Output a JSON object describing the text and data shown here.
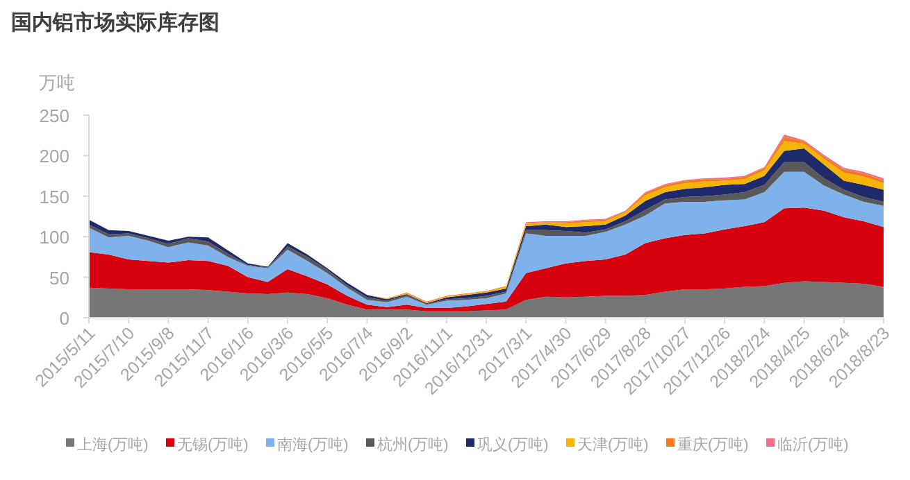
{
  "chart_data": {
    "type": "area",
    "stacked": true,
    "title": "国内铝市场实际库存图",
    "ylabel": "万吨",
    "legend": "bottom",
    "x": [
      "2015-05-11",
      "2015-06-10",
      "2015-07-10",
      "2015-08-09",
      "2015-09-08",
      "2015-10-08",
      "2015-11-07",
      "2015-12-07",
      "2016-01-06",
      "2016-02-05",
      "2016-03-06",
      "2016-04-05",
      "2016-05-05",
      "2016-06-04",
      "2016-07-04",
      "2016-08-03",
      "2016-09-02",
      "2016-10-02",
      "2016-11-01",
      "2016-12-01",
      "2016-12-31",
      "2017-01-30",
      "2017-03-01",
      "2017-03-31",
      "2017-04-30",
      "2017-05-30",
      "2017-06-29",
      "2017-07-29",
      "2017-08-28",
      "2017-09-27",
      "2017-10-27",
      "2017-11-26",
      "2017-12-26",
      "2018-01-25",
      "2018-02-24",
      "2018-03-26",
      "2018-04-25",
      "2018-05-25",
      "2018-06-24",
      "2018-07-24",
      "2018-08-23"
    ],
    "xlim": [
      "2015-05-11",
      "2018-08-23"
    ],
    "xticks": [
      {
        "value": "2015-05-11",
        "label": "2015/5/11"
      },
      {
        "value": "2015-07-10",
        "label": "2015/7/10"
      },
      {
        "value": "2015-09-08",
        "label": "2015/9/8"
      },
      {
        "value": "2015-11-07",
        "label": "2015/11/7"
      },
      {
        "value": "2016-01-06",
        "label": "2016/1/6"
      },
      {
        "value": "2016-03-06",
        "label": "2016/3/6"
      },
      {
        "value": "2016-05-05",
        "label": "2016/5/5"
      },
      {
        "value": "2016-07-04",
        "label": "2016/7/4"
      },
      {
        "value": "2016-09-02",
        "label": "2016/9/2"
      },
      {
        "value": "2016-11-01",
        "label": "2016/11/1"
      },
      {
        "value": "2016-12-31",
        "label": "2016/12/31"
      },
      {
        "value": "2017-03-01",
        "label": "2017/3/1"
      },
      {
        "value": "2017-04-30",
        "label": "2017/4/30"
      },
      {
        "value": "2017-06-29",
        "label": "2017/6/29"
      },
      {
        "value": "2017-08-28",
        "label": "2017/8/28"
      },
      {
        "value": "2017-10-27",
        "label": "2017/10/27"
      },
      {
        "value": "2017-12-26",
        "label": "2017/12/26"
      },
      {
        "value": "2018-02-24",
        "label": "2018/2/24"
      },
      {
        "value": "2018-04-25",
        "label": "2018/4/25"
      },
      {
        "value": "2018-06-24",
        "label": "2018/6/24"
      },
      {
        "value": "2018-08-23",
        "label": "2018/8/23"
      }
    ],
    "ylim": [
      0,
      250
    ],
    "yticks": [
      0,
      50,
      100,
      150,
      200,
      250
    ],
    "series": [
      {
        "name": "上海(万吨)",
        "color": "#767676",
        "values": [
          37,
          36,
          35,
          35,
          35,
          35,
          34,
          32,
          30,
          29,
          31,
          29,
          24,
          16,
          10,
          10,
          10,
          8,
          8,
          8,
          9,
          10,
          22,
          26,
          25,
          26,
          27,
          27,
          28,
          32,
          35,
          35,
          36,
          38,
          39,
          43,
          45,
          44,
          43,
          42,
          38
        ]
      },
      {
        "name": "无锡(万吨)",
        "color": "#d7000f",
        "values": [
          44,
          42,
          37,
          35,
          33,
          36,
          36,
          32,
          20,
          15,
          29,
          22,
          17,
          11,
          6,
          3,
          6,
          4,
          4,
          6,
          8,
          10,
          33,
          35,
          42,
          44,
          45,
          51,
          64,
          66,
          67,
          69,
          73,
          75,
          79,
          92,
          91,
          88,
          81,
          77,
          74
        ]
      },
      {
        "name": "南海(万吨)",
        "color": "#7fb2ea",
        "values": [
          30,
          21,
          29,
          25,
          19,
          22,
          19,
          11,
          14,
          17,
          24,
          19,
          14,
          10,
          6,
          6,
          10,
          4,
          9,
          8,
          7,
          10,
          49,
          40,
          34,
          31,
          34,
          37,
          34,
          43,
          41,
          39,
          36,
          33,
          37,
          45,
          44,
          31,
          28,
          24,
          26
        ]
      },
      {
        "name": "杭州(万吨)",
        "color": "#595959",
        "values": [
          4,
          4,
          3,
          3,
          4,
          5,
          5,
          4,
          1,
          1,
          4,
          5,
          4,
          3,
          3,
          2,
          2,
          1,
          2,
          2,
          3,
          2,
          4,
          7,
          6,
          4,
          3,
          4,
          7,
          5,
          6,
          7,
          7,
          9,
          9,
          12,
          12,
          9,
          6,
          6,
          5
        ]
      },
      {
        "name": "巩义(万吨)",
        "color": "#1f2a6b",
        "values": [
          6,
          5,
          3,
          3,
          4,
          2,
          5,
          4,
          2,
          1,
          4,
          3,
          2,
          3,
          3,
          2,
          1,
          1,
          2,
          4,
          4,
          4,
          5,
          7,
          5,
          8,
          6,
          7,
          11,
          9,
          10,
          11,
          12,
          10,
          11,
          14,
          17,
          17,
          11,
          15,
          15
        ]
      },
      {
        "name": "天津(万吨)",
        "color": "#f5b400",
        "values": [
          0,
          0,
          0,
          0,
          0,
          0,
          0,
          0,
          0,
          0,
          0,
          0,
          0,
          0,
          0,
          1,
          1,
          1,
          1,
          1,
          1,
          2,
          3,
          2,
          4,
          5,
          4,
          4,
          7,
          6,
          7,
          7,
          5,
          6,
          7,
          12,
          6,
          7,
          10,
          10,
          8
        ]
      },
      {
        "name": "重庆(万吨)",
        "color": "#f47b20",
        "values": [
          0,
          0,
          0,
          0,
          0,
          0,
          0,
          0,
          0,
          0,
          0,
          0,
          0,
          0,
          0,
          0,
          1,
          1,
          1,
          1,
          1,
          1,
          1,
          1,
          2,
          2,
          2,
          1,
          3,
          3,
          3,
          3,
          2,
          3,
          3,
          5,
          3,
          3,
          4,
          4,
          4
        ]
      },
      {
        "name": "临沂(万吨)",
        "color": "#ef6e8a",
        "values": [
          0,
          0,
          0,
          0,
          0,
          0,
          0,
          0,
          0,
          0,
          0,
          0,
          0,
          0,
          0,
          0,
          0,
          0,
          0,
          0,
          0,
          0,
          1,
          1,
          1,
          1,
          1,
          1,
          1,
          1,
          1,
          1,
          2,
          1,
          1,
          3,
          1,
          2,
          2,
          2,
          2
        ]
      }
    ]
  }
}
